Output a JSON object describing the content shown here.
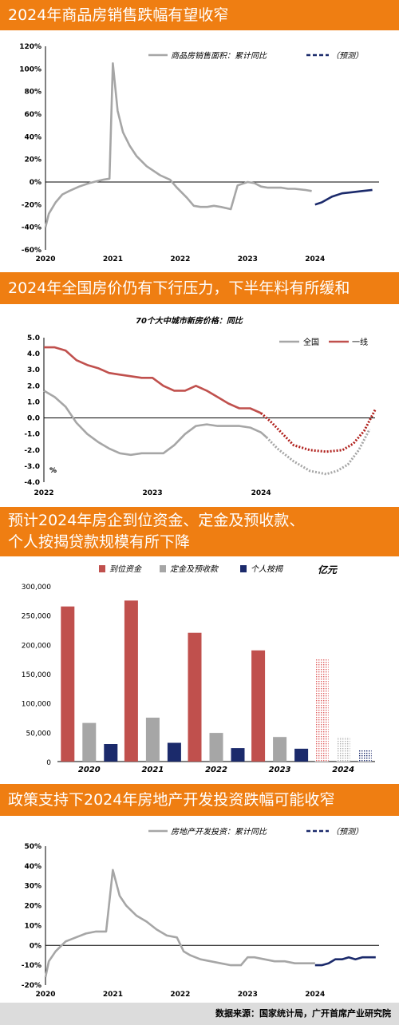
{
  "colors": {
    "orange": "#ef7e12",
    "gray": "#a6a6a6",
    "navy": "#1b2a6b",
    "red": "#c0504d"
  },
  "footer": {
    "source": "数据来源：国家统计局，广开首席产业研究院"
  },
  "chart_data": [
    {
      "type": "line",
      "title": "2024年商品房销售跌幅有望收窄",
      "series": [
        {
          "name": "商品房销售面积：累计同比",
          "x": [
            2020.0,
            2020.05,
            2020.15,
            2020.25,
            2020.35,
            2020.5,
            2020.65,
            2020.85,
            2020.95,
            2021.0,
            2021.07,
            2021.15,
            2021.25,
            2021.35,
            2021.5,
            2021.7,
            2021.85,
            2021.95,
            2022.05,
            2022.1,
            2022.2,
            2022.3,
            2022.4,
            2022.5,
            2022.6,
            2022.75,
            2022.85,
            2023.0,
            2023.1,
            2023.2,
            2023.3,
            2023.4,
            2023.5,
            2023.6,
            2023.7,
            2023.85,
            2023.95
          ],
          "values": [
            -40,
            -28,
            -18,
            -11,
            -8,
            -4,
            -1,
            2,
            3,
            105,
            63,
            44,
            32,
            23,
            14,
            6,
            2,
            -5,
            -11,
            -14,
            -21,
            -22,
            -22,
            -21,
            -22,
            -24,
            -3,
            0,
            -1,
            -4,
            -5,
            -5,
            -5,
            -6,
            -6,
            -7,
            -8
          ]
        },
        {
          "name": "（预测）",
          "x": [
            2024.0,
            2024.1,
            2024.25,
            2024.4,
            2024.55,
            2024.7,
            2024.85
          ],
          "values": [
            -20,
            -18,
            -13,
            -10,
            -9,
            -8,
            -7
          ]
        }
      ],
      "xticks": [
        "2020",
        "2021",
        "2022",
        "2023",
        "2024"
      ],
      "ylim": [
        -60,
        120
      ],
      "yticks": [
        "120%",
        "100%",
        "80%",
        "60%",
        "40%",
        "20%",
        "0%",
        "-20%",
        "-40%",
        "-60%"
      ]
    },
    {
      "type": "line",
      "title": "2024年全国房价仍有下行压力，下半年料有所缓和",
      "subtitle": "70个大中城市新房价格：同比",
      "unit": "%",
      "series": [
        {
          "name": "全国",
          "x": [
            2022.0,
            2022.1,
            2022.2,
            2022.3,
            2022.4,
            2022.5,
            2022.6,
            2022.7,
            2022.8,
            2022.9,
            2023.0,
            2023.1,
            2023.2,
            2023.3,
            2023.4,
            2023.5,
            2023.6,
            2023.7,
            2023.8,
            2023.9,
            2024.0,
            2024.05
          ],
          "values": [
            1.7,
            1.3,
            0.7,
            -0.3,
            -1.0,
            -1.5,
            -1.9,
            -2.2,
            -2.3,
            -2.2,
            -2.2,
            -2.2,
            -1.7,
            -1.0,
            -0.5,
            -0.4,
            -0.5,
            -0.5,
            -0.5,
            -0.6,
            -0.9,
            -1.2
          ]
        },
        {
          "name": "全国（预测）",
          "x": [
            2024.05,
            2024.15,
            2024.3,
            2024.45,
            2024.6,
            2024.7,
            2024.8,
            2024.9,
            2025.0
          ],
          "values": [
            -1.2,
            -1.9,
            -2.7,
            -3.3,
            -3.5,
            -3.3,
            -2.9,
            -2.0,
            -0.7
          ]
        },
        {
          "name": "一线",
          "x": [
            2022.0,
            2022.1,
            2022.2,
            2022.3,
            2022.4,
            2022.5,
            2022.6,
            2022.7,
            2022.8,
            2022.9,
            2023.0,
            2023.1,
            2023.2,
            2023.3,
            2023.4,
            2023.5,
            2023.6,
            2023.7,
            2023.8,
            2023.9,
            2024.0
          ],
          "values": [
            4.4,
            4.4,
            4.2,
            3.6,
            3.3,
            3.1,
            2.8,
            2.7,
            2.6,
            2.5,
            2.5,
            2.0,
            1.7,
            1.7,
            2.0,
            1.7,
            1.3,
            0.9,
            0.6,
            0.6,
            0.3
          ]
        },
        {
          "name": "一线（预测）",
          "x": [
            2024.0,
            2024.1,
            2024.2,
            2024.3,
            2024.45,
            2024.6,
            2024.75,
            2024.85,
            2024.95,
            2025.05
          ],
          "values": [
            0.3,
            -0.3,
            -1.0,
            -1.7,
            -2.0,
            -2.1,
            -2.0,
            -1.6,
            -0.8,
            0.5
          ]
        }
      ],
      "xticks": [
        "2022",
        "2023",
        "2024"
      ],
      "ylim": [
        -4.0,
        5.0
      ],
      "yticks": [
        "5.0",
        "4.0",
        "3.0",
        "2.0",
        "1.0",
        "0.0",
        "-1.0",
        "-2.0",
        "-3.0",
        "-4.0"
      ]
    },
    {
      "type": "bar",
      "title_lines": [
        "预计2024年房企到位资金、定金及预收款、",
        "个人按揭贷款规模有所下降"
      ],
      "unit": "亿元",
      "categories": [
        "2020",
        "2021",
        "2022",
        "2023",
        "2024"
      ],
      "series": [
        {
          "name": "到位资金",
          "values": [
            265000,
            275000,
            220000,
            190000,
            176000
          ]
        },
        {
          "name": "定金及预收款",
          "values": [
            66000,
            75000,
            49000,
            42000,
            42000
          ]
        },
        {
          "name": "个人按揭",
          "values": [
            30000,
            32000,
            23000,
            22000,
            20000
          ]
        }
      ],
      "forecast_category": "2024",
      "ylim": [
        0,
        300000
      ],
      "yticks": [
        "300,000",
        "250,000",
        "200,000",
        "150,000",
        "100,000",
        "50,000",
        "0"
      ]
    },
    {
      "type": "line",
      "title": "政策支持下2024年房地产开发投资跌幅可能收窄",
      "series": [
        {
          "name": "房地产开发投资：累计同比",
          "x": [
            2020.0,
            2020.05,
            2020.15,
            2020.3,
            2020.45,
            2020.6,
            2020.75,
            2020.9,
            2021.0,
            2021.1,
            2021.2,
            2021.35,
            2021.5,
            2021.65,
            2021.8,
            2021.95,
            2022.05,
            2022.15,
            2022.3,
            2022.45,
            2022.6,
            2022.75,
            2022.9,
            2023.0,
            2023.1,
            2023.25,
            2023.4,
            2023.55,
            2023.7,
            2023.85,
            2024.0
          ],
          "values": [
            -16,
            -8,
            -3,
            2,
            4,
            6,
            7,
            7,
            38,
            25,
            20,
            15,
            12,
            8,
            5,
            4,
            -3,
            -5,
            -7,
            -8,
            -9,
            -10,
            -10,
            -6,
            -6,
            -7,
            -8,
            -8,
            -9,
            -9,
            -9
          ]
        },
        {
          "name": "（预测）",
          "x": [
            2024.0,
            2024.1,
            2024.2,
            2024.3,
            2024.4,
            2024.5,
            2024.6,
            2024.7,
            2024.8,
            2024.9
          ],
          "values": [
            -10,
            -10,
            -9,
            -7,
            -7,
            -6,
            -7,
            -6,
            -6,
            -6
          ]
        }
      ],
      "xticks": [
        "2020",
        "2021",
        "2022",
        "2023",
        "2024"
      ],
      "ylim": [
        -20,
        50
      ],
      "yticks": [
        "50%",
        "40%",
        "30%",
        "20%",
        "10%",
        "0%",
        "-10%",
        "-20%"
      ]
    }
  ]
}
